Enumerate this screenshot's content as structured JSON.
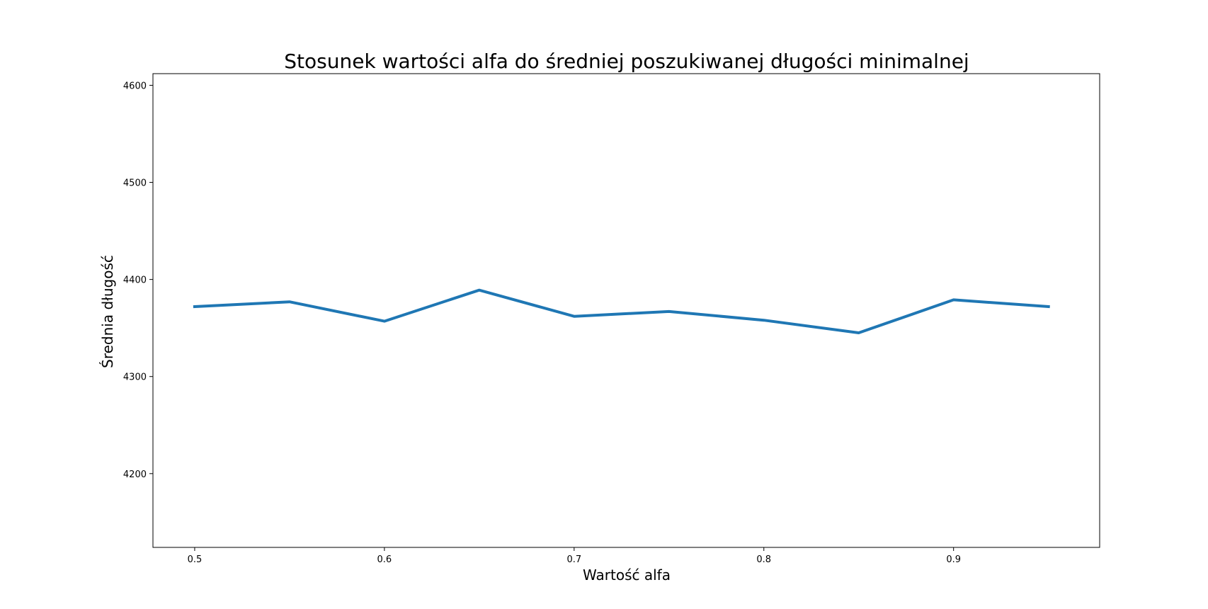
{
  "chart_data": {
    "type": "line",
    "title": "Stosunek wartości alfa do średniej poszukiwanej długości minimalnej",
    "xlabel": "Wartość alfa",
    "ylabel": "Średnia długość",
    "xlim": [
      0.478,
      0.977
    ],
    "ylim": [
      4124,
      4612
    ],
    "xticks": [
      0.5,
      0.6,
      0.7,
      0.8,
      0.9
    ],
    "xtick_labels": [
      "0.5",
      "0.6",
      "0.7",
      "0.8",
      "0.9"
    ],
    "yticks": [
      4200,
      4300,
      4400,
      4500,
      4600
    ],
    "ytick_labels": [
      "4200",
      "4300",
      "4400",
      "4500",
      "4600"
    ],
    "grid": false,
    "line_color": "#1f77b4",
    "series": [
      {
        "x": [
          0.5,
          0.55,
          0.6,
          0.65,
          0.7,
          0.75,
          0.8,
          0.85,
          0.9,
          0.95
        ],
        "y": [
          4372,
          4377,
          4357,
          4389,
          4362,
          4367,
          4358,
          4345,
          4379,
          4372
        ]
      }
    ]
  }
}
